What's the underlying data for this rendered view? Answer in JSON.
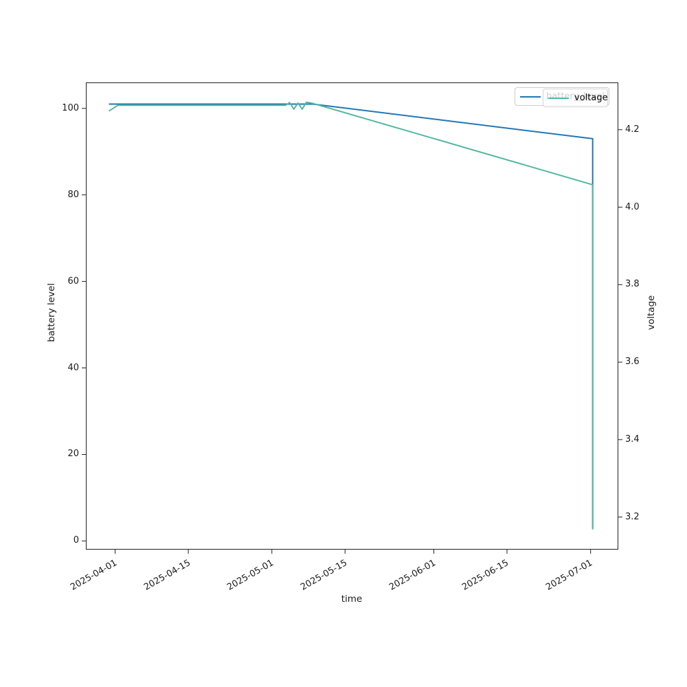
{
  "chart_data": {
    "type": "line",
    "title": "",
    "xlabel": "time",
    "ylabel_left": "battery level",
    "ylabel_right": "voltage",
    "x_axis": {
      "unit": "days since 2025-04-01",
      "lim": [
        -5.6,
        96.3
      ],
      "ticks": [
        {
          "d": 0,
          "label": "2025-04-01"
        },
        {
          "d": 14,
          "label": "2025-04-15"
        },
        {
          "d": 30,
          "label": "2025-05-01"
        },
        {
          "d": 44,
          "label": "2025-05-15"
        },
        {
          "d": 61,
          "label": "2025-06-01"
        },
        {
          "d": 75,
          "label": "2025-06-15"
        },
        {
          "d": 91,
          "label": "2025-07-01"
        }
      ]
    },
    "y_left": {
      "lim": [
        -2,
        106
      ],
      "ticks": [
        "0",
        "20",
        "40",
        "60",
        "80",
        "100"
      ]
    },
    "y_right": {
      "lim": [
        3.116,
        4.322
      ],
      "ticks": [
        "3.2",
        "3.4",
        "3.6",
        "3.8",
        "4.0",
        "4.2"
      ]
    },
    "grid": false,
    "legend_position": "upper right",
    "series": [
      {
        "name": "battery_level",
        "axis": "left",
        "color": "#1f77b4",
        "points": [
          [
            -1.2,
            101
          ],
          [
            37.8,
            101
          ],
          [
            91.4,
            93
          ],
          [
            91.4,
            3
          ]
        ]
      },
      {
        "name": "voltage",
        "axis": "right",
        "color": "#52b8a0",
        "points": [
          [
            -1.2,
            4.248
          ],
          [
            0.5,
            4.263
          ],
          [
            32.6,
            4.263
          ],
          [
            33.4,
            4.27
          ],
          [
            34.2,
            4.253
          ],
          [
            35.0,
            4.269
          ],
          [
            35.8,
            4.253
          ],
          [
            36.6,
            4.271
          ],
          [
            37.8,
            4.268
          ],
          [
            91.4,
            4.058
          ],
          [
            91.4,
            3.168
          ]
        ]
      }
    ]
  }
}
